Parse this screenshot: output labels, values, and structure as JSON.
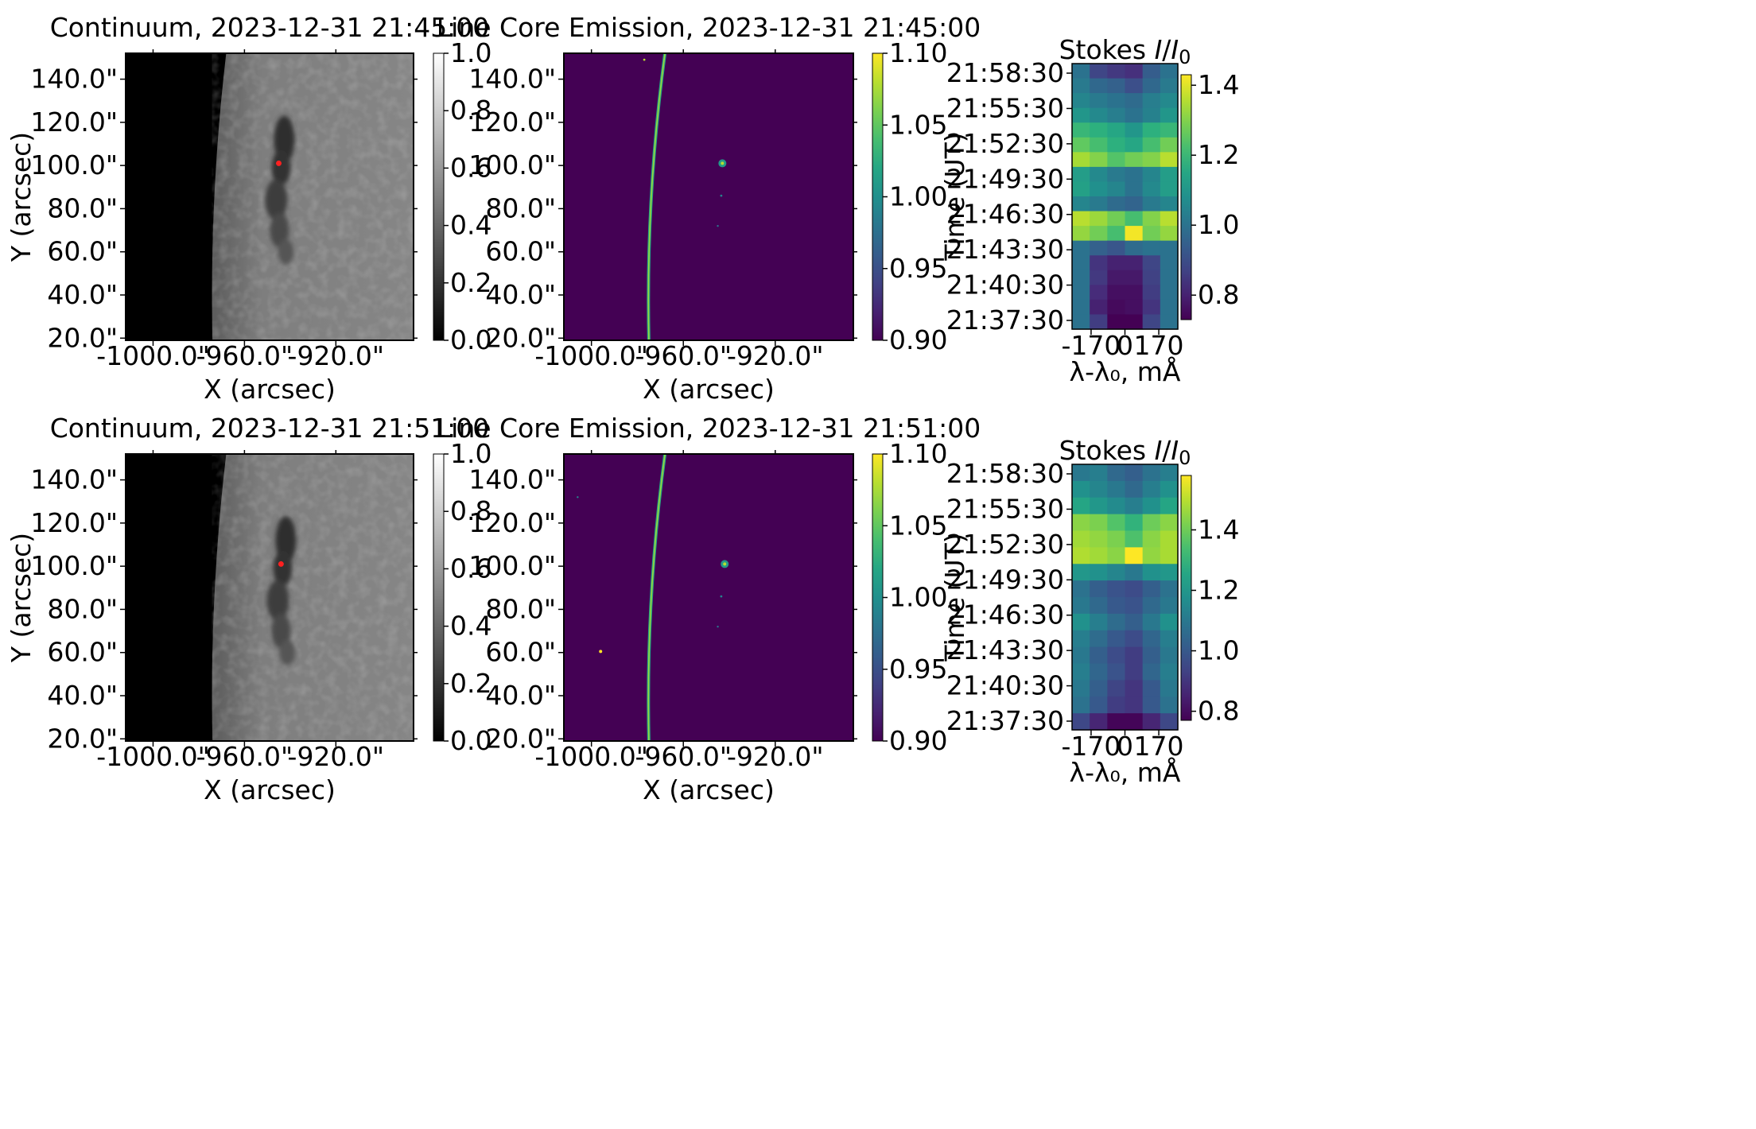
{
  "chart_data": [
    {
      "type": "image",
      "title": "Continuum, 2023-12-31 21:45:00",
      "xlabel": "X (arcsec)",
      "ylabel": "Y (arcsec)",
      "xlim": [
        -1012,
        -886
      ],
      "ylim": [
        19,
        152
      ],
      "xticks": [
        "-1000.0\"",
        "-960.0\"",
        "-920.0\""
      ],
      "yticks": [
        "20.0\"",
        "40.0\"",
        "60.0\"",
        "80.0\"",
        "100.0\"",
        "120.0\"",
        "140.0\""
      ],
      "colormap": "gray",
      "colorbar": {
        "min": 0.0,
        "max": 1.0,
        "ticks": [
          "0.0",
          "0.2",
          "0.4",
          "0.6",
          "0.8",
          "1.0"
        ]
      },
      "marker": {
        "x": -945,
        "y": 101,
        "color": "#ff2020"
      },
      "limb_x_at_bottom": -974,
      "limb_x_at_top": -968
    },
    {
      "type": "image",
      "title": "Line Core Emission, 2023-12-31 21:45:00",
      "xlabel": "X (arcsec)",
      "ylabel": "",
      "xlim": [
        -1012,
        -886
      ],
      "ylim": [
        19,
        152
      ],
      "xticks": [
        "-1000.0\"",
        "-960.0\"",
        "-920.0\""
      ],
      "yticks": [
        "20.0\"",
        "40.0\"",
        "60.0\"",
        "80.0\"",
        "100.0\"",
        "120.0\"",
        "140.0\""
      ],
      "colormap": "viridis",
      "colorbar": {
        "min": 0.9,
        "max": 1.1,
        "ticks": [
          "0.90",
          "0.95",
          "1.00",
          "1.05",
          "1.10"
        ]
      },
      "bright_point": {
        "x": -943,
        "y": 101
      }
    },
    {
      "type": "heatmap",
      "title": "Stokes I/I₀",
      "title_main": "Stokes ",
      "title_italic": "I",
      "title_mid": "/",
      "title_italic2": "I",
      "title_sub": "0",
      "xlabel": "λ-λ₀, mÅ",
      "ylabel": "Time (UT)",
      "xticks": [
        "-170",
        "0",
        "170"
      ],
      "yticks": [
        "21:37:30",
        "21:40:30",
        "21:43:30",
        "21:46:30",
        "21:49:30",
        "21:52:30",
        "21:55:30",
        "21:58:30"
      ],
      "colormap": "viridis",
      "colorbar": {
        "min": 0.73,
        "max": 1.43,
        "ticks": [
          "0.8",
          "1.0",
          "1.2",
          "1.4"
        ]
      },
      "rows_top_to_bottom": [
        [
          1.0,
          0.88,
          0.85,
          0.83,
          0.94,
          1.0
        ],
        [
          1.02,
          0.97,
          0.95,
          0.9,
          0.97,
          1.02
        ],
        [
          1.05,
          1.02,
          1.0,
          0.98,
          1.03,
          1.06
        ],
        [
          1.1,
          1.06,
          1.03,
          1.0,
          1.04,
          1.1
        ],
        [
          1.2,
          1.18,
          1.15,
          1.1,
          1.18,
          1.2
        ],
        [
          1.26,
          1.22,
          1.18,
          1.15,
          1.22,
          1.28
        ],
        [
          1.34,
          1.3,
          1.24,
          1.28,
          1.3,
          1.36
        ],
        [
          1.12,
          1.06,
          1.02,
          1.0,
          1.05,
          1.12
        ],
        [
          1.13,
          1.08,
          1.05,
          1.0,
          1.06,
          1.12
        ],
        [
          1.05,
          1.02,
          0.98,
          0.96,
          1.02,
          1.05
        ],
        [
          1.36,
          1.33,
          1.28,
          1.22,
          1.3,
          1.36
        ],
        [
          1.32,
          1.28,
          1.22,
          1.42,
          1.28,
          1.32
        ],
        [
          1.0,
          0.95,
          0.92,
          0.98,
          1.0,
          1.0
        ],
        [
          1.0,
          0.84,
          0.8,
          0.8,
          0.88,
          1.0
        ],
        [
          1.0,
          0.85,
          0.78,
          0.78,
          0.87,
          1.0
        ],
        [
          1.0,
          0.82,
          0.76,
          0.76,
          0.86,
          1.0
        ],
        [
          1.0,
          0.8,
          0.75,
          0.76,
          0.84,
          1.0
        ],
        [
          1.0,
          0.86,
          0.73,
          0.73,
          0.88,
          1.0
        ]
      ]
    },
    {
      "type": "image",
      "title": "Continuum, 2023-12-31 21:51:00",
      "xlabel": "X (arcsec)",
      "ylabel": "Y (arcsec)",
      "xlim": [
        -1012,
        -886
      ],
      "ylim": [
        19,
        152
      ],
      "xticks": [
        "-1000.0\"",
        "-960.0\"",
        "-920.0\""
      ],
      "yticks": [
        "20.0\"",
        "40.0\"",
        "60.0\"",
        "80.0\"",
        "100.0\"",
        "120.0\"",
        "140.0\""
      ],
      "colormap": "gray",
      "colorbar": {
        "min": 0.0,
        "max": 1.0,
        "ticks": [
          "0.0",
          "0.2",
          "0.4",
          "0.6",
          "0.8",
          "1.0"
        ]
      },
      "marker": {
        "x": -944,
        "y": 101,
        "color": "#ff2020"
      },
      "limb_x_at_bottom": -974,
      "limb_x_at_top": -968
    },
    {
      "type": "image",
      "title": "Line Core Emission, 2023-12-31 21:51:00",
      "xlabel": "X (arcsec)",
      "ylabel": "",
      "xlim": [
        -1012,
        -886
      ],
      "ylim": [
        19,
        152
      ],
      "xticks": [
        "-1000.0\"",
        "-960.0\"",
        "-920.0\""
      ],
      "yticks": [
        "20.0\"",
        "40.0\"",
        "60.0\"",
        "80.0\"",
        "100.0\"",
        "120.0\"",
        "140.0\""
      ],
      "colormap": "viridis",
      "colorbar": {
        "min": 0.9,
        "max": 1.1,
        "ticks": [
          "0.90",
          "0.95",
          "1.00",
          "1.05",
          "1.10"
        ]
      },
      "bright_point": {
        "x": -942,
        "y": 101
      }
    },
    {
      "type": "heatmap",
      "title": "Stokes I/I₀",
      "title_main": "Stokes ",
      "title_italic": "I",
      "title_mid": "/",
      "title_italic2": "I",
      "title_sub": "0",
      "xlabel": "λ-λ₀, mÅ",
      "ylabel": "Time (UT)",
      "xticks": [
        "-170",
        "0",
        "170"
      ],
      "yticks": [
        "21:37:30",
        "21:40:30",
        "21:43:30",
        "21:46:30",
        "21:49:30",
        "21:52:30",
        "21:55:30",
        "21:58:30"
      ],
      "colormap": "viridis",
      "colorbar": {
        "min": 0.77,
        "max": 1.58,
        "ticks": [
          "0.8",
          "1.0",
          "1.2",
          "1.4"
        ]
      },
      "rows_top_to_bottom": [
        [
          1.1,
          1.12,
          1.05,
          1.02,
          1.08,
          1.12
        ],
        [
          1.18,
          1.14,
          1.1,
          1.05,
          1.12,
          1.18
        ],
        [
          1.25,
          1.2,
          1.16,
          1.12,
          1.18,
          1.25
        ],
        [
          1.44,
          1.42,
          1.36,
          1.3,
          1.4,
          1.44
        ],
        [
          1.47,
          1.45,
          1.42,
          1.35,
          1.44,
          1.48
        ],
        [
          1.49,
          1.47,
          1.44,
          1.58,
          1.45,
          1.48
        ],
        [
          1.2,
          1.18,
          1.14,
          1.1,
          1.18,
          1.2
        ],
        [
          1.08,
          1.02,
          0.98,
          0.96,
          1.02,
          1.08
        ],
        [
          1.1,
          1.05,
          1.0,
          0.98,
          1.05,
          1.1
        ],
        [
          1.18,
          1.12,
          1.06,
          1.02,
          1.1,
          1.18
        ],
        [
          1.12,
          1.06,
          1.0,
          0.96,
          1.04,
          1.12
        ],
        [
          1.1,
          1.02,
          0.96,
          0.92,
          1.02,
          1.1
        ],
        [
          1.12,
          1.04,
          0.98,
          0.92,
          1.04,
          1.12
        ],
        [
          1.1,
          1.02,
          0.94,
          0.9,
          1.0,
          1.1
        ],
        [
          1.08,
          1.0,
          0.92,
          0.9,
          1.0,
          1.08
        ],
        [
          0.95,
          0.86,
          0.78,
          0.78,
          0.86,
          0.95
        ]
      ]
    }
  ]
}
